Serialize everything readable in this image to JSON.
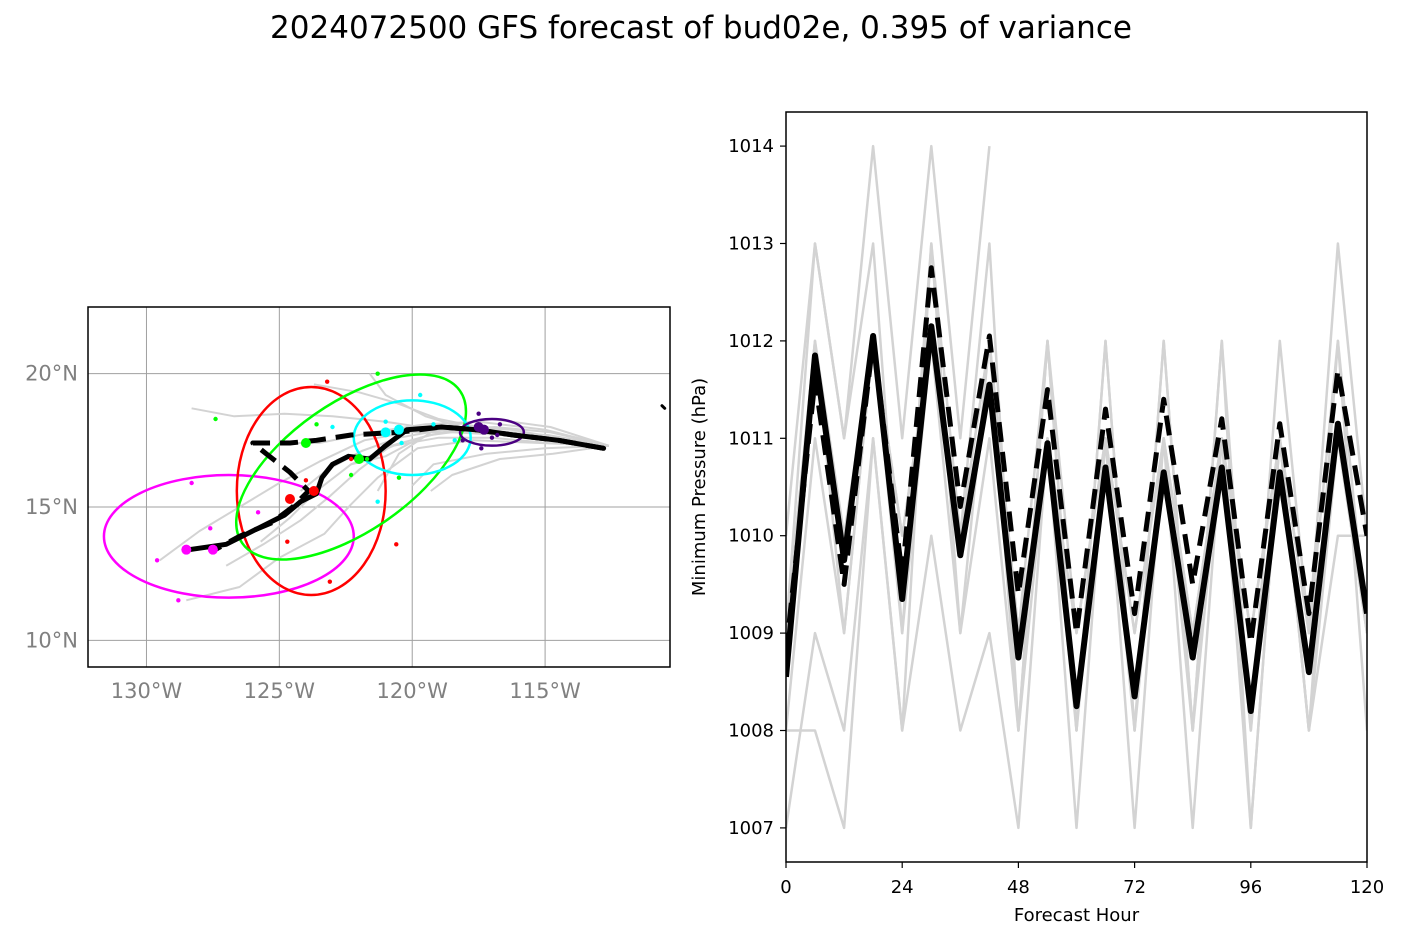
{
  "figure": {
    "title": "2024072500 GFS forecast of bud02e, 0.395 of variance"
  },
  "chart_data": [
    {
      "type": "map",
      "name": "track-map",
      "xlim": [
        -132.2,
        -110.3
      ],
      "ylim": [
        9.0,
        22.5
      ],
      "x_ticks": [
        -130,
        -125,
        -120,
        -115
      ],
      "x_tick_labels": [
        "130°W",
        "125°W",
        "120°W",
        "115°W"
      ],
      "y_ticks": [
        10,
        15,
        20
      ],
      "y_tick_labels": [
        "10°N",
        "15°N",
        "20°N"
      ],
      "grid": true,
      "colors": {
        "member": "#d3d3d3",
        "mean": "#000000",
        "tick_label": "#808080"
      },
      "member_tracks": [
        [
          [
            -112.6,
            17.3
          ],
          [
            -114.5,
            17.6
          ],
          [
            -116.3,
            17.8
          ],
          [
            -117.8,
            17.9
          ],
          [
            -119.3,
            17.7
          ],
          [
            -120.8,
            17.3
          ],
          [
            -122.0,
            16.4
          ],
          [
            -123.1,
            15.4
          ],
          [
            -124.2,
            14.5
          ],
          [
            -125.6,
            13.6
          ],
          [
            -127.0,
            12.8
          ]
        ],
        [
          [
            -112.6,
            17.3
          ],
          [
            -114.8,
            17.5
          ],
          [
            -117.0,
            17.9
          ],
          [
            -119.0,
            18.3
          ],
          [
            -120.6,
            18.9
          ],
          [
            -122.0,
            19.3
          ],
          [
            -123.7,
            19.6
          ]
        ],
        [
          [
            -112.6,
            17.3
          ],
          [
            -115.0,
            17.9
          ],
          [
            -117.5,
            18.2
          ],
          [
            -119.5,
            18.1
          ],
          [
            -121.5,
            17.8
          ],
          [
            -123.5,
            17.4
          ],
          [
            -125.0,
            17.4
          ]
        ],
        [
          [
            -112.6,
            17.3
          ],
          [
            -115.2,
            17.4
          ],
          [
            -117.7,
            17.5
          ],
          [
            -119.8,
            17.2
          ],
          [
            -121.3,
            16.1
          ],
          [
            -122.3,
            15.1
          ],
          [
            -123.3,
            14.0
          ],
          [
            -125.0,
            13.1
          ],
          [
            -126.5,
            12.0
          ],
          [
            -128.5,
            11.5
          ]
        ],
        [
          [
            -112.6,
            17.3
          ],
          [
            -114.8,
            18.0
          ],
          [
            -117.0,
            18.3
          ],
          [
            -119.0,
            18.0
          ],
          [
            -120.5,
            17.0
          ],
          [
            -121.3,
            15.6
          ]
        ],
        [
          [
            -112.6,
            17.3
          ],
          [
            -115.0,
            17.2
          ],
          [
            -117.2,
            17.0
          ],
          [
            -119.2,
            16.6
          ],
          [
            -120.0,
            15.8
          ]
        ],
        [
          [
            -112.6,
            17.3
          ],
          [
            -114.9,
            17.7
          ],
          [
            -117.0,
            17.8
          ],
          [
            -119.0,
            17.9
          ],
          [
            -121.0,
            18.2
          ],
          [
            -123.0,
            18.4
          ],
          [
            -124.8,
            18.5
          ],
          [
            -126.7,
            18.4
          ],
          [
            -128.3,
            18.7
          ]
        ],
        [
          [
            -112.6,
            17.3
          ],
          [
            -114.5,
            17.5
          ],
          [
            -116.5,
            17.7
          ],
          [
            -118.5,
            17.8
          ],
          [
            -120.2,
            17.8
          ],
          [
            -121.8,
            17.5
          ],
          [
            -123.5,
            16.7
          ],
          [
            -125.0,
            15.9
          ],
          [
            -126.5,
            15.0
          ],
          [
            -128.0,
            14.1
          ],
          [
            -129.5,
            13.0
          ]
        ],
        [
          [
            -112.6,
            17.3
          ],
          [
            -115.0,
            17.5
          ],
          [
            -117.5,
            17.8
          ],
          [
            -119.5,
            18.4
          ],
          [
            -121.0,
            19.2
          ],
          [
            -121.6,
            20.0
          ]
        ],
        [
          [
            -112.6,
            17.3
          ],
          [
            -114.7,
            17.0
          ],
          [
            -116.7,
            16.8
          ],
          [
            -118.5,
            16.2
          ],
          [
            -119.3,
            15.6
          ]
        ],
        [
          [
            -112.6,
            17.3
          ],
          [
            -114.5,
            17.6
          ],
          [
            -116.3,
            17.9
          ],
          [
            -118.0,
            18.0
          ],
          [
            -119.7,
            17.6
          ],
          [
            -121.0,
            16.9
          ],
          [
            -122.3,
            16.6
          ]
        ],
        [
          [
            -112.6,
            17.3
          ],
          [
            -114.9,
            17.4
          ],
          [
            -117.0,
            17.6
          ],
          [
            -119.0,
            17.6
          ],
          [
            -120.7,
            17.3
          ],
          [
            -122.3,
            16.6
          ],
          [
            -123.6,
            15.6
          ],
          [
            -124.6,
            14.6
          ],
          [
            -125.7,
            13.7
          ]
        ],
        [
          [
            -112.6,
            17.3
          ],
          [
            -114.8,
            17.8
          ],
          [
            -116.9,
            18.0
          ],
          [
            -118.8,
            17.9
          ],
          [
            -120.5,
            17.6
          ],
          [
            -121.9,
            17.1
          ],
          [
            -123.2,
            16.4
          ],
          [
            -124.2,
            15.6
          ]
        ]
      ],
      "mean_tracks": [
        {
          "style": "solid",
          "points": [
            [
              -112.8,
              17.2
            ],
            [
              -114.5,
              17.5
            ],
            [
              -116.2,
              17.7
            ],
            [
              -117.6,
              17.9
            ],
            [
              -118.9,
              18.0
            ],
            [
              -120.2,
              17.9
            ],
            [
              -121.0,
              17.3
            ],
            [
              -121.6,
              16.8
            ],
            [
              -122.4,
              16.9
            ],
            [
              -123.0,
              16.6
            ],
            [
              -123.4,
              16.1
            ],
            [
              -123.6,
              15.5
            ],
            [
              -124.2,
              15.2
            ],
            [
              -124.8,
              14.7
            ],
            [
              -125.8,
              14.2
            ],
            [
              -127.0,
              13.6
            ],
            [
              -128.4,
              13.4
            ]
          ]
        },
        {
          "style": "dashed",
          "points": [
            [
              -112.8,
              17.2
            ],
            [
              -114.5,
              17.5
            ],
            [
              -116.2,
              17.7
            ],
            [
              -117.6,
              17.9
            ],
            [
              -118.9,
              18.0
            ],
            [
              -120.5,
              17.8
            ],
            [
              -122.3,
              17.7
            ],
            [
              -123.6,
              17.5
            ],
            [
              -124.6,
              17.4
            ],
            [
              -126.0,
              17.4
            ],
            [
              -125.5,
              17.0
            ],
            [
              -124.6,
              16.3
            ],
            [
              -123.9,
              15.6
            ],
            [
              -124.5,
              15.0
            ],
            [
              -125.3,
              14.4
            ],
            [
              -126.5,
              13.9
            ],
            [
              -127.6,
              13.3
            ]
          ]
        },
        {
          "style": "dot",
          "points": [
            [
              -110.6,
              18.8
            ],
            [
              -110.5,
              18.7
            ]
          ]
        }
      ],
      "mean_positions": [
        {
          "color": "#ff0000",
          "points": [
            [
              -124.6,
              15.3
            ],
            [
              -123.7,
              15.6
            ]
          ]
        },
        {
          "color": "#00ff00",
          "points": [
            [
              -124.0,
              17.4
            ],
            [
              -122.0,
              16.8
            ]
          ]
        },
        {
          "color": "#00ffff",
          "points": [
            [
              -121.0,
              17.8
            ],
            [
              -120.5,
              17.9
            ]
          ]
        },
        {
          "color": "#ff00ff",
          "points": [
            [
              -128.5,
              13.4
            ],
            [
              -127.5,
              13.4
            ]
          ]
        },
        {
          "color": "#4b0082",
          "points": [
            [
              -117.5,
              18.0
            ],
            [
              -117.3,
              17.9
            ]
          ]
        }
      ],
      "member_positions": [
        {
          "color": "#ff0000",
          "points": [
            [
              -123.2,
              19.7
            ],
            [
              -124.7,
              13.7
            ],
            [
              -120.6,
              13.6
            ],
            [
              -123.1,
              12.2
            ],
            [
              -122.3,
              16.8
            ],
            [
              -124.0,
              16.0
            ]
          ]
        },
        {
          "color": "#00ff00",
          "points": [
            [
              -127.4,
              18.3
            ],
            [
              -121.3,
              20.0
            ],
            [
              -120.5,
              16.1
            ],
            [
              -121.7,
              16.8
            ],
            [
              -122.3,
              16.2
            ],
            [
              -123.6,
              18.1
            ]
          ]
        },
        {
          "color": "#00ffff",
          "points": [
            [
              -119.7,
              19.2
            ],
            [
              -119.2,
              18.1
            ],
            [
              -121.3,
              15.2
            ],
            [
              -120.4,
              17.4
            ],
            [
              -118.4,
              17.5
            ],
            [
              -121.0,
              18.2
            ],
            [
              -123.0,
              18.0
            ]
          ]
        },
        {
          "color": "#ff00ff",
          "points": [
            [
              -128.3,
              15.9
            ],
            [
              -127.6,
              14.2
            ],
            [
              -129.6,
              13.0
            ],
            [
              -128.8,
              11.5
            ],
            [
              -125.8,
              14.8
            ]
          ]
        },
        {
          "color": "#4b0082",
          "points": [
            [
              -117.5,
              18.5
            ],
            [
              -118.1,
              17.5
            ],
            [
              -116.7,
              18.1
            ],
            [
              -117.0,
              17.6
            ],
            [
              -117.4,
              17.2
            ],
            [
              -116.8,
              17.7
            ]
          ]
        }
      ],
      "ellipses": [
        {
          "color": "#ff00ff",
          "center": [
            -126.9,
            13.9
          ],
          "radius_deg": [
            4.7,
            2.3
          ],
          "angle_deg": 0
        },
        {
          "color": "#ff0000",
          "center": [
            -123.8,
            15.6
          ],
          "radius_deg": [
            2.8,
            3.9
          ],
          "angle_deg": 0
        },
        {
          "color": "#00ff00",
          "center": [
            -122.3,
            16.5
          ],
          "radius_deg": [
            5.0,
            2.4
          ],
          "angle_deg": -35
        },
        {
          "color": "#00ffff",
          "center": [
            -120.0,
            17.6
          ],
          "radius_deg": [
            2.2,
            1.4
          ],
          "angle_deg": 0
        },
        {
          "color": "#4b0082",
          "center": [
            -117.0,
            17.8
          ],
          "radius_deg": [
            1.2,
            0.5
          ],
          "angle_deg": 0
        }
      ]
    },
    {
      "type": "line",
      "name": "pressure-chart",
      "xlabel": "Forecast Hour",
      "ylabel": "Minimum Pressure (hPa)",
      "xlim": [
        0,
        120
      ],
      "ylim": [
        1006.65,
        1014.35
      ],
      "x_ticks": [
        0,
        24,
        48,
        72,
        96,
        120
      ],
      "y_ticks": [
        1007,
        1008,
        1009,
        1010,
        1011,
        1012,
        1013,
        1014
      ],
      "colors": {
        "member": "#d3d3d3",
        "mean": "#000000"
      },
      "x": [
        0,
        6,
        12,
        18,
        24,
        30,
        36,
        42,
        48,
        54,
        60,
        66,
        72,
        78,
        84,
        90,
        96,
        102,
        108,
        114,
        120
      ],
      "member_series": [
        [
          1009,
          1013,
          1011,
          1014,
          1011,
          1014,
          1011,
          1014
        ],
        [
          1008,
          1008,
          1007,
          1011,
          1008,
          1013,
          1009,
          1012,
          1008,
          1012,
          1008,
          1012,
          1008,
          1012,
          1008,
          1012,
          1008,
          1012,
          1009,
          1013,
          1010
        ],
        [
          1007,
          1009,
          1008,
          1011,
          1008,
          1010,
          1008,
          1009,
          1007,
          1011,
          1007,
          1011,
          1007,
          1011,
          1007,
          1011,
          1007,
          1011,
          1008,
          1012,
          1008
        ],
        [
          1010,
          1013,
          1011,
          1013,
          1009,
          1013,
          1010,
          1013,
          1008,
          1012,
          1008,
          1012,
          1008,
          1012,
          1008,
          1012,
          1007,
          1011,
          1008,
          1010,
          1010
        ],
        [
          1009,
          1012,
          1010,
          1012,
          1010,
          1012,
          1010,
          1012,
          1009,
          1011,
          1009,
          1011,
          1009,
          1011,
          1009,
          1011,
          1009,
          1011,
          1009,
          1011,
          1009
        ],
        [
          1008,
          1011,
          1009,
          1012,
          1009,
          1012,
          1009,
          1011,
          1008,
          1011,
          1008,
          1011,
          1008,
          1011,
          1008,
          1011,
          1008,
          1011,
          1008,
          1011,
          1009
        ],
        [
          1009,
          1012,
          1009,
          1012,
          1010,
          1012,
          1010,
          1012,
          1009,
          1012,
          1009,
          1011,
          1009,
          1011,
          1009,
          1011,
          1009,
          1011,
          1009,
          1012,
          1009
        ]
      ],
      "mean_series": [
        {
          "style": "solid",
          "values": [
            1008.55,
            1011.85,
            1009.75,
            1012.05,
            1009.35,
            1012.15,
            1009.8,
            1011.55,
            1008.75,
            1010.95,
            1008.25,
            1010.7,
            1008.35,
            1010.65,
            1008.75,
            1010.7,
            1008.2,
            1010.65,
            1008.6,
            1011.15,
            1009.2
          ]
        },
        {
          "style": "dashed",
          "values": [
            1008.8,
            1011.6,
            1009.5,
            1012.0,
            1009.6,
            1012.75,
            1010.3,
            1012.05,
            1009.4,
            1011.5,
            1009.0,
            1011.3,
            1009.2,
            1011.4,
            1009.5,
            1011.2,
            1008.9,
            1011.15,
            1009.2,
            1011.7,
            1010.0
          ]
        }
      ]
    }
  ]
}
